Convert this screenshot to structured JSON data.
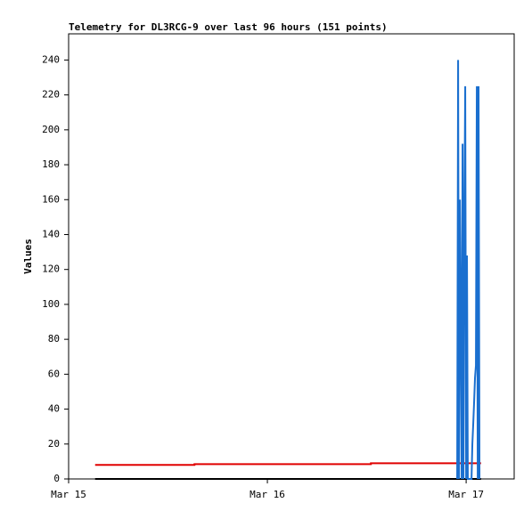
{
  "chart_data": {
    "type": "line",
    "title": "Telemetry for DL3RCG-9 over last 96 hours (151 points)",
    "y_label": "Values",
    "xlim": [
      0,
      53.8
    ],
    "ylim": [
      0,
      255
    ],
    "xticks": [
      {
        "value": 0,
        "label": "Mar 15"
      },
      {
        "value": 24,
        "label": "Mar 16"
      },
      {
        "value": 48,
        "label": "Mar 17"
      }
    ],
    "yticks": [
      0,
      20,
      40,
      60,
      80,
      100,
      120,
      140,
      160,
      180,
      200,
      220,
      240
    ],
    "grid": false,
    "series": [
      {
        "color": "#e00000",
        "x": [
          3.2,
          15.2,
          15.2,
          36.5,
          36.5,
          49.8
        ],
        "values": [
          8,
          8,
          8.5,
          8.5,
          9,
          9
        ]
      },
      {
        "color": "#000000",
        "x": [
          3.2,
          49.8
        ],
        "values": [
          0,
          0
        ]
      },
      {
        "color": "#1a6fcf",
        "x": [
          46.92,
          47.03,
          47.14,
          47.25,
          47.35,
          47.46,
          47.57,
          47.68,
          47.78,
          47.89,
          48.0,
          48.1,
          48.2,
          48.65,
          48.75,
          48.86,
          48.97,
          49.07,
          49.18,
          49.29,
          49.4,
          49.5,
          49.61
        ],
        "values": [
          0,
          240,
          0,
          160,
          97,
          0,
          192,
          0,
          145,
          225,
          0,
          128,
          0,
          0,
          20,
          32,
          45,
          58,
          65,
          225,
          0,
          225,
          0
        ]
      }
    ]
  }
}
